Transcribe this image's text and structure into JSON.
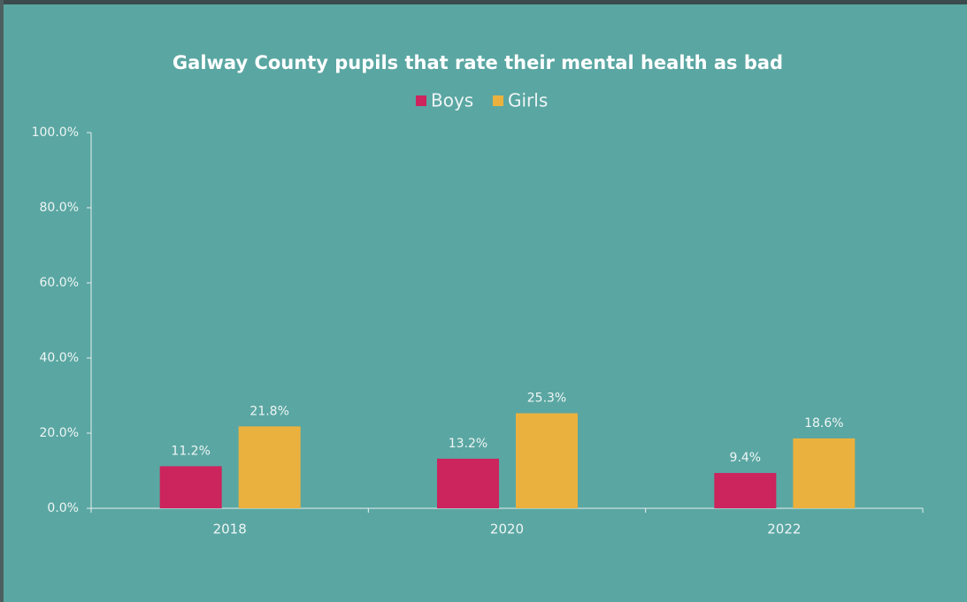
{
  "chart_data": {
    "type": "bar",
    "title": "Galway County pupils that rate their mental health as bad",
    "categories": [
      "2018",
      "2020",
      "2022"
    ],
    "series": [
      {
        "name": "Boys",
        "color": "#cc245c",
        "values": [
          11.2,
          13.2,
          9.4
        ],
        "value_labels": [
          "11.2%",
          "13.2%",
          "9.4%"
        ]
      },
      {
        "name": "Girls",
        "color": "#ebb13e",
        "values": [
          21.8,
          25.3,
          18.6
        ],
        "value_labels": [
          "21.8%",
          "25.3%",
          "18.6%"
        ]
      }
    ],
    "ylim": [
      0,
      100
    ],
    "yticks": [
      {
        "value": 0,
        "label": "0.0%"
      },
      {
        "value": 20,
        "label": "20.0%"
      },
      {
        "value": 40,
        "label": "40.0%"
      },
      {
        "value": 60,
        "label": "60.0%"
      },
      {
        "value": 80,
        "label": "80.0%"
      },
      {
        "value": 100,
        "label": "100.0%"
      }
    ],
    "legend": "top",
    "grid": false
  }
}
